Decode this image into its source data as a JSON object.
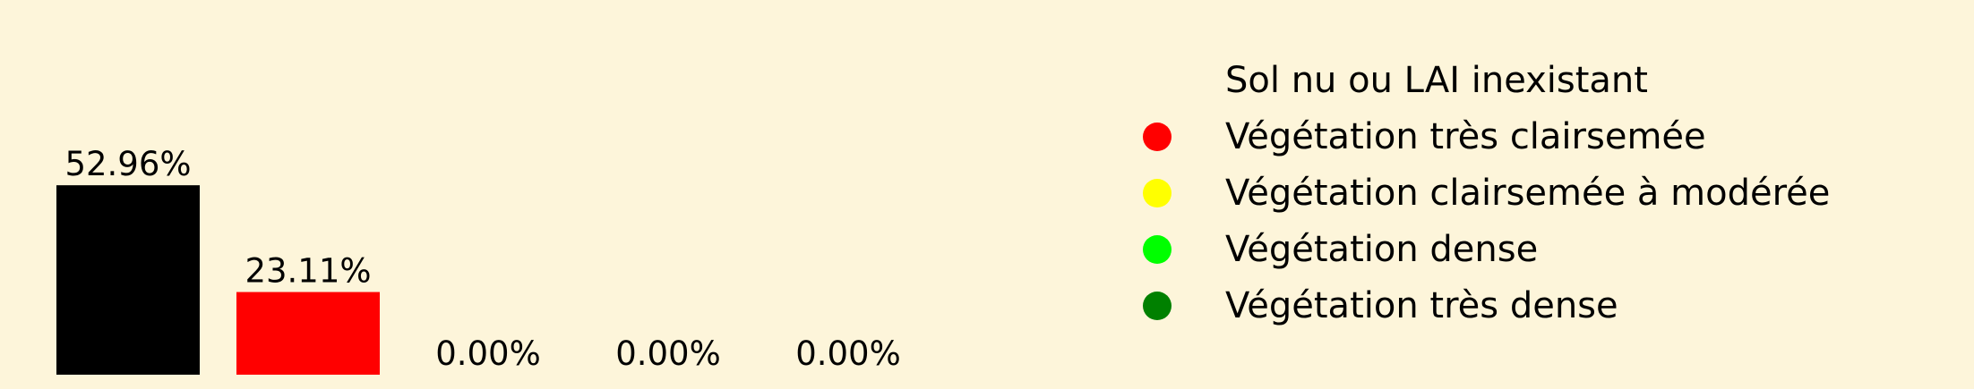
{
  "chart_data": {
    "type": "bar",
    "categories": [
      "Sol nu ou LAI inexistant",
      "Végétation très clairsemée",
      "Végétation clairsemée à modérée",
      "Végétation dense",
      "Végétation très dense"
    ],
    "values": [
      52.96,
      23.11,
      0.0,
      0.0,
      0.0
    ],
    "value_labels": [
      "52.96%",
      "23.11%",
      "0.00%",
      "0.00%",
      "0.00%"
    ],
    "colors": [
      "#000000",
      "#ff0000",
      "#ffff00",
      "#00ff00",
      "#008000"
    ],
    "legend_markers": [
      "#fdf5da",
      "#ff0000",
      "#ffff00",
      "#00ff00",
      "#008000"
    ],
    "ylim": [
      0,
      60
    ],
    "grid": false,
    "legend_position": "right"
  },
  "legend": {
    "items": [
      "Sol nu ou LAI inexistant",
      "Végétation très clairsemée",
      "Végétation clairsemée à modérée",
      "Végétation dense",
      "Végétation très dense"
    ]
  },
  "background": "#fdf5da"
}
